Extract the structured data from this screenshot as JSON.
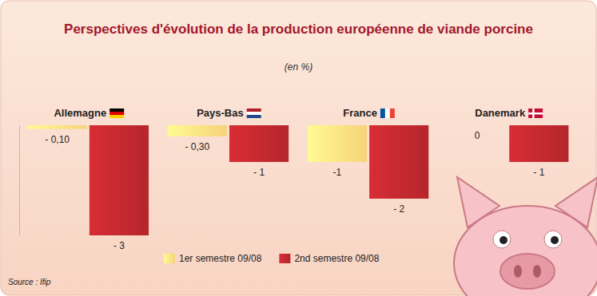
{
  "chart_data": {
    "type": "bar",
    "title": "Perspectives d'évolution de la production européenne de viande porcine",
    "subtitle": "(en %)",
    "source": "Source : Ifip",
    "categories": [
      "Allemagne",
      "Pays-Bas",
      "France",
      "Danemark"
    ],
    "series": [
      {
        "name": "1er semestre 09/08",
        "color": "#f7d27a",
        "values": [
          -0.1,
          -0.3,
          -1,
          0
        ],
        "value_labels": [
          "- 0,10",
          "- 0,30",
          "-1",
          "0"
        ]
      },
      {
        "name": "2nd semestre 09/08",
        "color": "#b5262c",
        "values": [
          -3,
          -1,
          -2,
          -1
        ],
        "value_labels": [
          "- 3",
          "- 1",
          "- 2",
          "- 1"
        ]
      }
    ],
    "ylim": [
      -3,
      0
    ],
    "data_labels": true,
    "tick_labels": false,
    "grid": false,
    "legend": "bottom"
  }
}
